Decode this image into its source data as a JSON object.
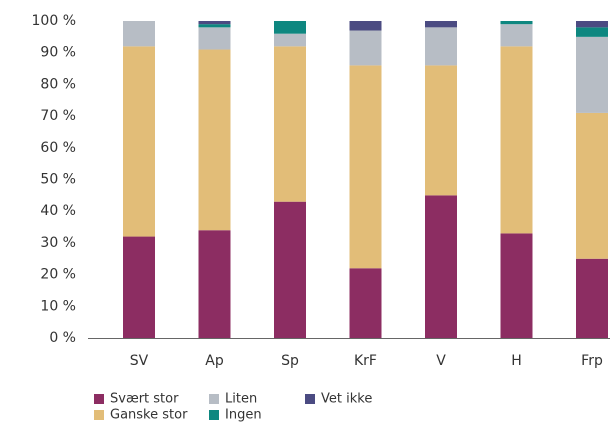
{
  "chart_data": {
    "type": "stacked_bar",
    "categories": [
      "SV",
      "Ap",
      "Sp",
      "KrF",
      "V",
      "H",
      "Frp"
    ],
    "series": [
      {
        "name": "Svært stor",
        "color": "#8c2d62",
        "values": [
          32,
          34,
          43,
          22,
          45,
          33,
          25
        ]
      },
      {
        "name": "Ganske stor",
        "color": "#e2bd78",
        "values": [
          60,
          57,
          49,
          64,
          41,
          59,
          46
        ]
      },
      {
        "name": "Liten",
        "color": "#b7bdc5",
        "values": [
          8,
          7,
          4,
          11,
          12,
          7,
          24
        ]
      },
      {
        "name": "Ingen",
        "color": "#0e8780",
        "values": [
          0,
          1,
          4,
          0,
          0,
          1,
          3
        ]
      },
      {
        "name": "Vet ikke",
        "color": "#4b4b82",
        "values": [
          0,
          1,
          0,
          3,
          2,
          0,
          2
        ]
      }
    ],
    "ylim": [
      0,
      100
    ],
    "yticks": [
      {
        "value": 0,
        "label": "0 %"
      },
      {
        "value": 10,
        "label": "10 %"
      },
      {
        "value": 20,
        "label": "20 %"
      },
      {
        "value": 30,
        "label": "30 %"
      },
      {
        "value": 40,
        "label": "40 %"
      },
      {
        "value": 50,
        "label": "50 %"
      },
      {
        "value": 60,
        "label": "60 %"
      },
      {
        "value": 70,
        "label": "70 %"
      },
      {
        "value": 80,
        "label": "80 %"
      },
      {
        "value": 90,
        "label": "90 %"
      },
      {
        "value": 100,
        "label": "100 %"
      }
    ],
    "grid": false
  }
}
